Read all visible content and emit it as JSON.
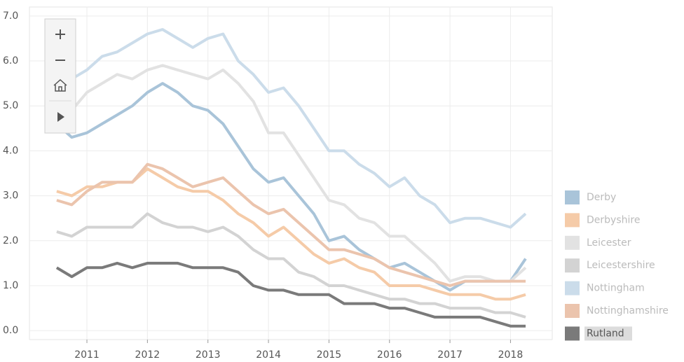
{
  "chart_data": {
    "type": "line",
    "x": [
      2010.5,
      2010.75,
      2011,
      2011.25,
      2011.5,
      2011.75,
      2012,
      2012.25,
      2012.5,
      2012.75,
      2013,
      2013.25,
      2013.5,
      2013.75,
      2014,
      2014.25,
      2014.5,
      2014.75,
      2015,
      2015.25,
      2015.5,
      2015.75,
      2016,
      2016.25,
      2016.5,
      2016.75,
      2017,
      2017.25,
      2017.5,
      2017.75,
      2018,
      2018.25
    ],
    "series": [
      {
        "name": "Derby",
        "color": "#a9c4d9",
        "values": [
          4.6,
          4.3,
          4.4,
          4.6,
          4.8,
          5.0,
          5.3,
          5.5,
          5.3,
          5.0,
          4.9,
          4.6,
          4.1,
          3.6,
          3.3,
          3.4,
          3.0,
          2.6,
          2.0,
          2.1,
          1.8,
          1.6,
          1.4,
          1.5,
          1.3,
          1.1,
          0.9,
          1.1,
          1.1,
          1.1,
          1.1,
          1.6
        ]
      },
      {
        "name": "Derbyshire",
        "color": "#f5cba8",
        "values": [
          3.1,
          3.0,
          3.2,
          3.2,
          3.3,
          3.3,
          3.6,
          3.4,
          3.2,
          3.1,
          3.1,
          2.9,
          2.6,
          2.4,
          2.1,
          2.3,
          2.0,
          1.7,
          1.5,
          1.6,
          1.4,
          1.3,
          1.0,
          1.0,
          1.0,
          0.9,
          0.8,
          0.8,
          0.8,
          0.7,
          0.7,
          0.8
        ]
      },
      {
        "name": "Leicester",
        "color": "#e2e2e2",
        "values": [
          5.0,
          4.9,
          5.3,
          5.5,
          5.7,
          5.6,
          5.8,
          5.9,
          5.8,
          5.7,
          5.6,
          5.8,
          5.5,
          5.1,
          4.4,
          4.4,
          3.9,
          3.4,
          2.9,
          2.8,
          2.5,
          2.4,
          2.1,
          2.1,
          1.8,
          1.5,
          1.1,
          1.2,
          1.2,
          1.1,
          1.1,
          1.4
        ]
      },
      {
        "name": "Leicestershire",
        "color": "#d3d3d3",
        "values": [
          2.2,
          2.1,
          2.3,
          2.3,
          2.3,
          2.3,
          2.6,
          2.4,
          2.3,
          2.3,
          2.2,
          2.3,
          2.1,
          1.8,
          1.6,
          1.6,
          1.3,
          1.2,
          1.0,
          1.0,
          0.9,
          0.8,
          0.7,
          0.7,
          0.6,
          0.6,
          0.5,
          0.5,
          0.5,
          0.4,
          0.4,
          0.3
        ]
      },
      {
        "name": "Nottingham",
        "color": "#cbdcea",
        "values": [
          5.5,
          5.6,
          5.8,
          6.1,
          6.2,
          6.4,
          6.6,
          6.7,
          6.5,
          6.3,
          6.5,
          6.6,
          6.0,
          5.7,
          5.3,
          5.4,
          5.0,
          4.5,
          4.0,
          4.0,
          3.7,
          3.5,
          3.2,
          3.4,
          3.0,
          2.8,
          2.4,
          2.5,
          2.5,
          2.4,
          2.3,
          2.6
        ]
      },
      {
        "name": "Nottinghamshire",
        "color": "#ebc4ad",
        "values": [
          2.9,
          2.8,
          3.1,
          3.3,
          3.3,
          3.3,
          3.7,
          3.6,
          3.4,
          3.2,
          3.3,
          3.4,
          3.1,
          2.8,
          2.6,
          2.7,
          2.4,
          2.1,
          1.8,
          1.8,
          1.7,
          1.6,
          1.4,
          1.3,
          1.2,
          1.1,
          1.0,
          1.1,
          1.1,
          1.1,
          1.1,
          1.1
        ]
      },
      {
        "name": "Rutland",
        "color": "#7a7a7a",
        "values": [
          1.4,
          1.2,
          1.4,
          1.4,
          1.5,
          1.4,
          1.5,
          1.5,
          1.5,
          1.4,
          1.4,
          1.4,
          1.3,
          1.0,
          0.9,
          0.9,
          0.8,
          0.8,
          0.8,
          0.6,
          0.6,
          0.6,
          0.5,
          0.5,
          0.4,
          0.3,
          0.3,
          0.3,
          0.3,
          0.2,
          0.1,
          0.1
        ]
      }
    ],
    "xlim": [
      2010.05,
      2018.69
    ],
    "xticks": [
      2011,
      2012,
      2013,
      2014,
      2015,
      2016,
      2017,
      2018
    ],
    "ylim": [
      -0.2,
      7.2
    ],
    "yticks": [
      {
        "value": 0,
        "label": "0.0"
      },
      {
        "value": 1,
        "label": "1.0"
      },
      {
        "value": 2,
        "label": "2.0"
      },
      {
        "value": 3,
        "label": "3.0"
      },
      {
        "value": 4,
        "label": "4.0"
      },
      {
        "value": 5,
        "label": "5.0"
      },
      {
        "value": 6,
        "label": "6.0"
      },
      {
        "value": 7,
        "label": "7.0"
      }
    ],
    "grid": true,
    "highlight": "Rutland"
  }
}
